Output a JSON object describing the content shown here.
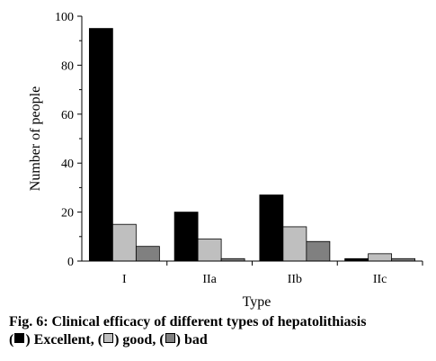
{
  "chart_data": {
    "type": "bar",
    "categories": [
      "I",
      "IIa",
      "IIb",
      "IIc"
    ],
    "series": [
      {
        "name": "Excellent",
        "values": [
          95,
          20,
          27,
          1
        ],
        "color": "#000000"
      },
      {
        "name": "good",
        "values": [
          15,
          9,
          14,
          3
        ],
        "color": "#bfbfbf"
      },
      {
        "name": "bad",
        "values": [
          6,
          1,
          8,
          1
        ],
        "color": "#808080"
      }
    ],
    "xlabel": "Type",
    "ylabel": "Number of people",
    "ylim": [
      0,
      100
    ],
    "yticks": [
      0,
      20,
      40,
      60,
      80,
      100
    ],
    "grid": false,
    "legend": "caption"
  },
  "caption": {
    "title": "Fig. 6: Clinical efficacy of different types of hepatolithiasis",
    "legend_items": [
      {
        "label": "Excellent",
        "swatch_color": "#000000"
      },
      {
        "label": "good",
        "swatch_color": "#bfbfbf"
      },
      {
        "label": "bad",
        "swatch_color": "#808080"
      }
    ]
  }
}
